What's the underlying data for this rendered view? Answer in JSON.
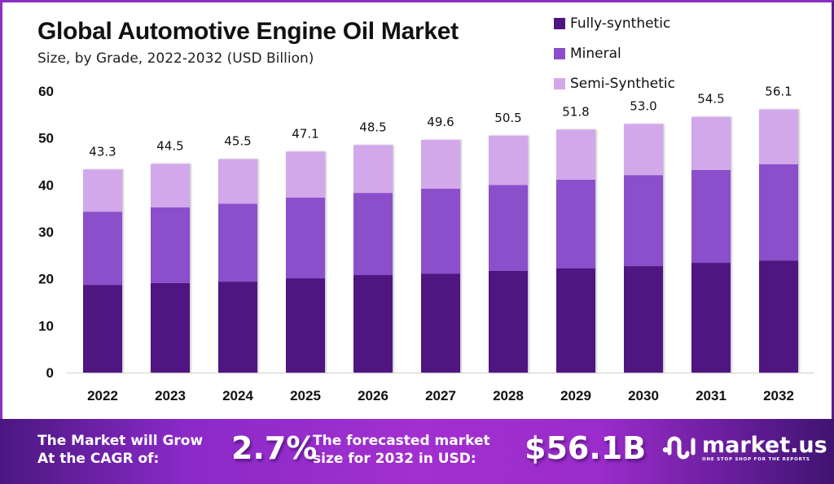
{
  "chart_data": {
    "type": "bar",
    "stacked": true,
    "title": "Global Automotive Engine Oil Market",
    "subtitle": "Size, by Grade, 2022-2032 (USD Billion)",
    "xlabel": "",
    "ylabel": "",
    "ylim": [
      0,
      60
    ],
    "yticks": [
      0,
      10,
      20,
      30,
      40,
      50,
      60
    ],
    "grid": false,
    "legend_position": "top-right",
    "categories": [
      "2022",
      "2023",
      "2024",
      "2025",
      "2026",
      "2027",
      "2028",
      "2029",
      "2030",
      "2031",
      "2032"
    ],
    "series": [
      {
        "name": "Fully-synthetic",
        "color": "#4f1681",
        "values": [
          18.7,
          19.1,
          19.4,
          20.1,
          20.8,
          21.1,
          21.7,
          22.2,
          22.7,
          23.4,
          23.9
        ]
      },
      {
        "name": "Mineral",
        "color": "#8b4fcc",
        "values": [
          15.6,
          16.1,
          16.6,
          17.2,
          17.5,
          18.1,
          18.3,
          18.9,
          19.4,
          19.8,
          20.5
        ]
      },
      {
        "name": "Semi-Synthetic",
        "color": "#d3a8ea",
        "values": [
          9.0,
          9.3,
          9.5,
          9.8,
          10.2,
          10.4,
          10.5,
          10.7,
          10.9,
          11.3,
          11.7
        ]
      }
    ],
    "totals": [
      "43.3",
      "44.5",
      "45.5",
      "47.1",
      "48.5",
      "49.6",
      "50.5",
      "51.8",
      "53.0",
      "54.5",
      "56.1"
    ]
  },
  "footer": {
    "cagr_text_line1": "The Market will Grow",
    "cagr_text_line2": "At the CAGR of:",
    "cagr_value": "2.7%",
    "forecast_text_line1": "The forecasted market",
    "forecast_text_line2": "size for 2032 in USD:",
    "forecast_value": "$56.1B",
    "logo_name": "market.us",
    "logo_tagline": "ONE STOP SHOP FOR THE REPORTS"
  }
}
